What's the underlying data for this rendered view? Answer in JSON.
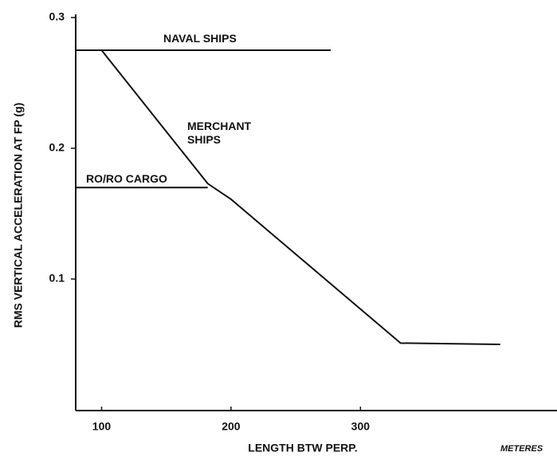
{
  "chart_data": {
    "type": "line",
    "xlabel": "LENGTH BTW PERP.",
    "ylabel": "RMS VERTICAL ACCELERATION AT FP (g)",
    "annotation": "METERES",
    "xlim": [
      80,
      450
    ],
    "xticks": [
      100,
      200,
      300
    ],
    "ylim": [
      0,
      0.3
    ],
    "yticks": [
      0.1,
      0.2,
      0.3
    ],
    "grid": false,
    "series": [
      {
        "name": "NAVAL SHIPS",
        "color": "#111111",
        "x": [
          80,
          277
        ],
        "values": [
          0.275,
          0.275
        ]
      },
      {
        "name": "MERCHANT SHIPS",
        "color": "#111111",
        "x": [
          100,
          145,
          182,
          200,
          331,
          408
        ],
        "values": [
          0.275,
          0.219,
          0.173,
          0.161,
          0.051,
          0.05
        ]
      },
      {
        "name": "RO/RO CARGO",
        "color": "#111111",
        "x": [
          80,
          182
        ],
        "values": [
          0.17,
          0.17
        ]
      }
    ]
  }
}
